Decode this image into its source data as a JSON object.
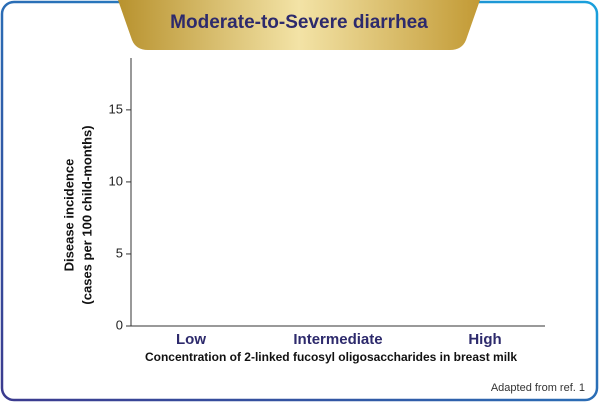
{
  "chart_data": {
    "type": "bar",
    "title": "Moderate-to-Severe diarrhea",
    "categories": [
      "Low",
      "Intermediate",
      "High"
    ],
    "values": [
      null,
      null,
      null
    ],
    "x_label": "Concentration of 2-linked fucosyl oligosaccharides in breast milk",
    "y_label": [
      "Disease incidence",
      "(cases per 100 child-months)"
    ],
    "ylim": [
      0,
      18.6
    ],
    "yticks": [
      0,
      5,
      10,
      15
    ],
    "source": "Adapted from ref. 1"
  }
}
